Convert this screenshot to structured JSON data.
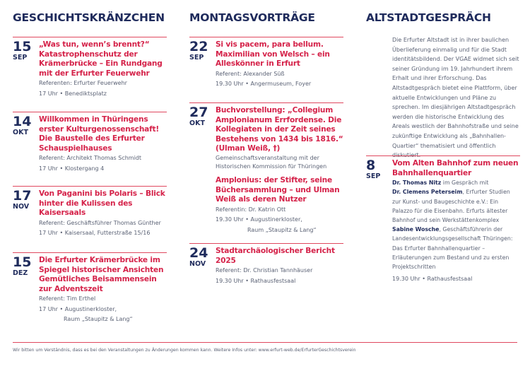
{
  "columns": [
    {
      "title": "GESCHICHTSKRÄNZCHEN"
    },
    {
      "title": "MONTAGSVORTRÄGE"
    },
    {
      "title": "ALTSTADTGESPRÄCH",
      "intro": "Die Erfurter Altstadt ist in ihrer baulichen Überlieferung einmalig und für die Stadt identitätsbildend. Der VGAE widmet sich seit seiner Gründung im 19. Jahrhundert ihrem Erhalt und ihrer Erforschung. Das Altstadtgespräch bietet eine Plattform, über aktuelle Entwicklungen und Pläne zu sprechen. Im diesjährigen Altstadtgespräch werden die historische Entwicklung des Areals westlich der Bahnhofstraße und seine zukünftige Entwicklung als „Bahnhallen-Quartier“ thematisiert und öffentlich diskutiert."
    }
  ],
  "events": [
    {
      "day": "15",
      "month": "SEP",
      "title": "„Was tun, wenn’s brennt?“ Katastrophenschutz der Krämerbrücke – Ein Rundgang mit der Erfurter Feuerwehr",
      "speaker": "Referenten: Erfurter Feuerwehr",
      "time": "17 Uhr • Benediktsplatz"
    },
    {
      "day": "14",
      "month": "OKT",
      "title": "Willkommen in Thüringens erster Kulturgenossenschaft! Die Baustelle des Erfurter Schauspielhauses",
      "speaker": "Referent: Architekt Thomas Schmidt",
      "time": "17 Uhr • Klostergang 4"
    },
    {
      "day": "17",
      "month": "NOV",
      "title": "Von Paganini bis Polaris – Blick hinter die Kulissen des Kaisersaals",
      "speaker": "Referent: Geschäftsführer Thomas Günther",
      "time": "17 Uhr • Kaisersaal, Futterstraße 15/16"
    },
    {
      "day": "15",
      "month": "DEZ",
      "title": "Die Erfurter Krämerbrücke im Spiegel historischer Ansichten Gemütliches Beisammensein zur Adventszeit",
      "speaker": "Referent: Tim Erthel",
      "time": "17 Uhr • Augustinerkloster,",
      "time2": "Raum „Staupitz & Lang“"
    },
    {
      "day": "22",
      "month": "SEP",
      "title": "Si vis pacem, para bellum. Maximilian von Welsch – ein Alleskönner in Erfurt",
      "speaker": "Referent: Alexander Süß",
      "time": "19.30 Uhr • Angermuseum, Foyer"
    },
    {
      "day": "27",
      "month": "OKT",
      "title": "Buchvorstellung: „Collegium Amplonianum Errfordense. Die Kollegiaten in der Zeit seines Bestehens von 1434 bis 1816.“ (Ulman Weiß, †)",
      "speaker": "Gemeinschaftsveranstaltung mit der Historischen Kommission für Thüringen",
      "title2": "Amplonius: der Stifter, seine Büchersammlung – und Ulman Weiß als deren Nutzer",
      "speaker2": "Referentin: Dr. Katrin Ott",
      "time": "19.30 Uhr • Augustinerkloster,",
      "time2": "Raum „Staupitz & Lang“"
    },
    {
      "day": "24",
      "month": "NOV",
      "title": "Stadtarchäologischer Bericht 2025",
      "speaker": "Referent: Dr. Christian Tannhäuser",
      "time": "19.30 Uhr • Rathausfestsaal"
    },
    {
      "day": "8",
      "month": "SEP",
      "title": "Vom Alten Bahnhof zum neuen Bahnhallenquartier",
      "p1": "Dr. Thomas Nitz",
      "p1t": " im Gespräch mit",
      "p2": "Dr. Clemens Peterseim",
      "p2t": ", Erfurter Studien zur Kunst- und Baugeschichte e.V.: Ein Palazzo für die Eisenbahn. Erfurts ältester Bahnhof und sein Werkstättenkomplex",
      "p3": "Sabine Wosche",
      "p3t": ", Geschäftsführerin der Landesentwicklungsgesellschaft Thüringen: Das Erfurter Bahnhallenquartier – Erläuterungen zum Bestand und zu ersten Projektschritten",
      "time": "19.30 Uhr • Rathausfestsaal"
    }
  ],
  "footer": "Wir bitten um Verständnis, dass es bei den Veranstaltungen zu Änderungen kommen kann. Weitere Infos unter: www.erfurt-web.de/ErfurterGeschichtsverein",
  "colors": {
    "navy": "#1f2b5c",
    "red": "#d5234a"
  }
}
